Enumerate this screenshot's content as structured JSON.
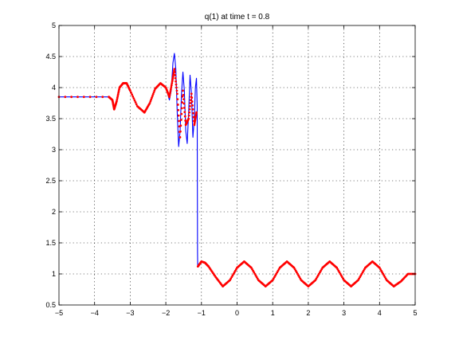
{
  "chart_data": {
    "type": "line",
    "title": "q(1)   at time t = 0.8",
    "xlabel": "",
    "ylabel": "",
    "xlim": [
      -5,
      5
    ],
    "ylim": [
      0.5,
      5
    ],
    "grid": true,
    "legend": "none",
    "xticks": [
      -5,
      -4,
      -3,
      -2,
      -1,
      0,
      1,
      2,
      3,
      4,
      5
    ],
    "yticks": [
      0.5,
      1,
      1.5,
      2,
      2.5,
      3,
      3.5,
      4,
      4.5,
      5
    ],
    "xtick_labels": [
      "−5",
      "−4",
      "−3",
      "−2",
      "−1",
      "0",
      "1",
      "2",
      "3",
      "4",
      "5"
    ],
    "ytick_labels": [
      "0.5",
      "1",
      "1.5",
      "2",
      "2.5",
      "3",
      "3.5",
      "4",
      "4.5",
      "5"
    ],
    "series": [
      {
        "style": "line",
        "color": "#0000ff",
        "x": [
          -5,
          -3.6,
          -3.5,
          -3.45,
          -3.38,
          -3.3,
          -3.2,
          -3.1,
          -3.0,
          -2.8,
          -2.6,
          -2.45,
          -2.3,
          -2.15,
          -2.0,
          -1.9,
          -1.85,
          -1.8,
          -1.76,
          -1.72,
          -1.68,
          -1.64,
          -1.6,
          -1.56,
          -1.52,
          -1.48,
          -1.44,
          -1.4,
          -1.36,
          -1.32,
          -1.28,
          -1.24,
          -1.2,
          -1.17,
          -1.14,
          -1.12,
          -1.11,
          -1.105,
          -1.1,
          -1.0,
          -0.9,
          -0.8,
          -0.6,
          -0.4,
          -0.2,
          0.0,
          0.2,
          0.4,
          0.6,
          0.8,
          1.0,
          1.2,
          1.4,
          1.6,
          1.8,
          2.0,
          2.2,
          2.4,
          2.6,
          2.8,
          3.0,
          3.2,
          3.4,
          3.6,
          3.8,
          4.0,
          4.2,
          4.4,
          4.6,
          4.8,
          5.0
        ],
        "y": [
          3.85,
          3.85,
          3.8,
          3.65,
          3.78,
          4.0,
          4.07,
          4.07,
          3.95,
          3.7,
          3.6,
          3.75,
          3.98,
          4.07,
          4.0,
          3.8,
          3.95,
          4.4,
          4.55,
          4.3,
          3.6,
          3.05,
          3.3,
          3.9,
          4.25,
          3.95,
          3.3,
          3.1,
          3.6,
          4.2,
          3.9,
          3.2,
          3.5,
          4.0,
          4.15,
          3.7,
          1.35,
          1.12,
          1.13,
          1.2,
          1.18,
          1.12,
          0.95,
          0.8,
          0.9,
          1.1,
          1.2,
          1.1,
          0.9,
          0.8,
          0.9,
          1.1,
          1.2,
          1.1,
          0.9,
          0.8,
          0.9,
          1.1,
          1.2,
          1.1,
          0.9,
          0.8,
          0.9,
          1.1,
          1.2,
          1.1,
          0.9,
          0.8,
          0.88,
          1.0,
          1.0
        ]
      },
      {
        "style": "markers",
        "color": "#ff0000",
        "x": [
          -5,
          -3.6,
          -3.5,
          -3.45,
          -3.38,
          -3.3,
          -3.2,
          -3.1,
          -3.0,
          -2.8,
          -2.6,
          -2.45,
          -2.3,
          -2.15,
          -2.0,
          -1.9,
          -1.82,
          -1.76,
          -1.68,
          -1.6,
          -1.52,
          -1.44,
          -1.36,
          -1.28,
          -1.2,
          -1.14,
          -1.1,
          -1.0,
          -0.9,
          -0.8,
          -0.6,
          -0.4,
          -0.2,
          0.0,
          0.2,
          0.4,
          0.6,
          0.8,
          1.0,
          1.2,
          1.4,
          1.6,
          1.8,
          2.0,
          2.2,
          2.4,
          2.6,
          2.8,
          3.0,
          3.2,
          3.4,
          3.6,
          3.8,
          4.0,
          4.2,
          4.4,
          4.6,
          4.8,
          5.0
        ],
        "y": [
          3.85,
          3.85,
          3.8,
          3.65,
          3.78,
          4.0,
          4.07,
          4.07,
          3.95,
          3.7,
          3.6,
          3.75,
          3.98,
          4.07,
          4.0,
          3.85,
          4.1,
          4.3,
          3.9,
          3.2,
          3.95,
          3.4,
          3.5,
          3.9,
          3.4,
          3.6,
          1.12,
          1.2,
          1.18,
          1.12,
          0.95,
          0.8,
          0.9,
          1.1,
          1.2,
          1.1,
          0.9,
          0.8,
          0.9,
          1.1,
          1.2,
          1.1,
          0.9,
          0.8,
          0.9,
          1.1,
          1.2,
          1.1,
          0.9,
          0.8,
          0.9,
          1.1,
          1.2,
          1.1,
          0.9,
          0.8,
          0.88,
          1.0,
          1.0
        ]
      }
    ]
  }
}
